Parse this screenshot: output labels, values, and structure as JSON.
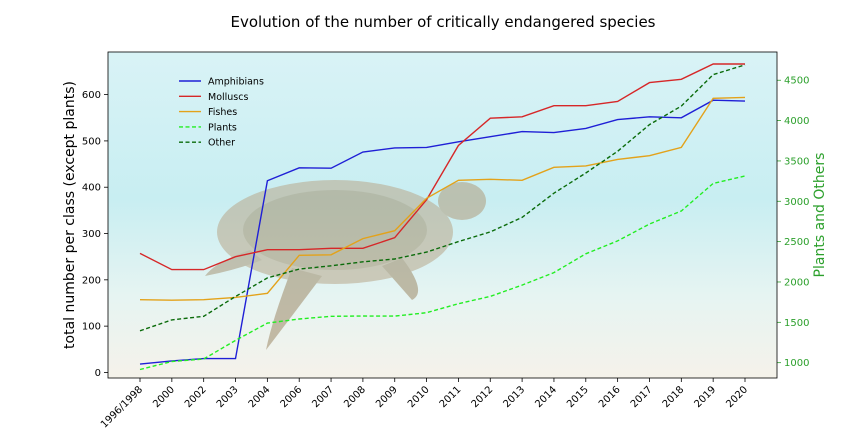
{
  "chart_data": {
    "type": "line",
    "title": "Evolution of the number of critically endangered species",
    "ylabel_left": "total number per class (except plants)",
    "ylabel_right": "Plants and Others",
    "categories": [
      "1996/1998",
      "2000",
      "2002",
      "2003",
      "2004",
      "2006",
      "2007",
      "2008",
      "2009",
      "2010",
      "2011",
      "2012",
      "2013",
      "2014",
      "2015",
      "2016",
      "2017",
      "2018",
      "2019",
      "2020"
    ],
    "left_axis": {
      "ylim": [
        -12,
        692
      ],
      "ticks": [
        0,
        100,
        200,
        300,
        400,
        500,
        600
      ]
    },
    "right_axis": {
      "ylim": [
        810,
        4850
      ],
      "ticks": [
        1000,
        1500,
        2000,
        2500,
        3000,
        3500,
        4000,
        4500
      ],
      "color": "#2ca02c"
    },
    "series": [
      {
        "name": "Amphibians",
        "axis": "left",
        "color": "#1f1fd6",
        "style": "solid",
        "values": [
          18,
          25,
          30,
          30,
          414,
          442,
          441,
          476,
          485,
          486,
          498,
          509,
          520,
          518,
          527,
          546,
          552,
          550,
          588,
          586
        ]
      },
      {
        "name": "Molluscs",
        "axis": "left",
        "color": "#d62728",
        "style": "solid",
        "values": [
          257,
          222,
          222,
          250,
          265,
          265,
          268,
          268,
          291,
          373,
          490,
          549,
          552,
          576,
          576,
          585,
          626,
          633,
          666,
          666
        ]
      },
      {
        "name": "Fishes",
        "axis": "left",
        "color": "#e3a21a",
        "style": "solid",
        "values": [
          157,
          156,
          157,
          162,
          171,
          253,
          254,
          289,
          306,
          376,
          415,
          417,
          415,
          443,
          446,
          460,
          468,
          486,
          592,
          594
        ]
      },
      {
        "name": "Plants",
        "axis": "right",
        "color": "#22ee22",
        "style": "dashed",
        "values": [
          915,
          1014,
          1046,
          1276,
          1490,
          1541,
          1575,
          1578,
          1577,
          1619,
          1731,
          1821,
          1961,
          2116,
          2349,
          2509,
          2718,
          2879,
          3222,
          3313
        ]
      },
      {
        "name": "Other",
        "axis": "right",
        "color": "#0a6b0a",
        "style": "dashed",
        "values": [
          1395,
          1530,
          1575,
          1820,
          2050,
          2160,
          2200,
          2250,
          2285,
          2370,
          2500,
          2620,
          2800,
          3100,
          3350,
          3620,
          3950,
          4180,
          4570,
          4690
        ]
      }
    ],
    "legend_position": "upper-left",
    "grid": false
  }
}
